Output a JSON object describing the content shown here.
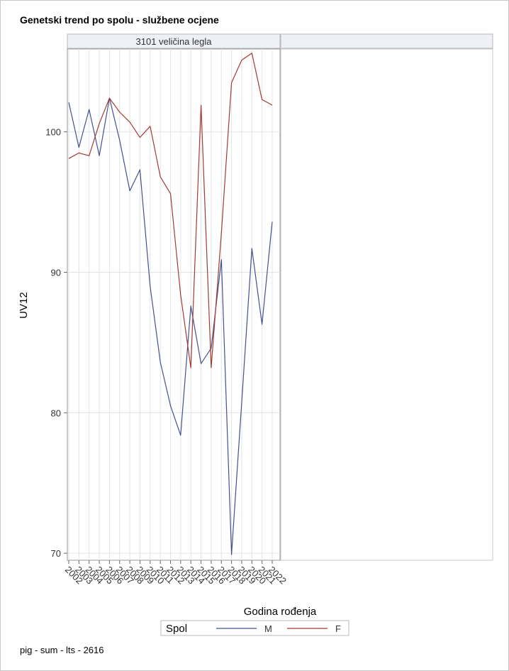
{
  "title": "Genetski trend po spolu - službene ocjene",
  "footer": "pig - sum - lts - 2616",
  "chart_data": {
    "type": "line",
    "panel_label": "3101 veličina legla",
    "xlabel": "Godina rođenja",
    "ylabel": "UV12",
    "ylim": [
      69.5,
      105.9
    ],
    "yticks": [
      70,
      80,
      90,
      100
    ],
    "x": [
      2002,
      2003,
      2004,
      2005,
      2006,
      2007,
      2008,
      2009,
      2010,
      2011,
      2012,
      2013,
      2014,
      2015,
      2016,
      2017,
      2018,
      2019,
      2020,
      2021,
      2022
    ],
    "legend_title": "Spol",
    "grid": true,
    "legend_position": "bottom",
    "series": [
      {
        "name": "M",
        "color": "#44508f",
        "values": [
          102.1,
          98.9,
          101.6,
          98.3,
          102.4,
          99.4,
          95.8,
          97.3,
          89.0,
          83.6,
          80.5,
          78.4,
          87.6,
          83.5,
          84.6,
          90.9,
          69.9,
          80.7,
          91.7,
          86.3,
          93.6
        ]
      },
      {
        "name": "F",
        "color": "#a33a32",
        "values": [
          98.1,
          98.5,
          98.3,
          100.6,
          102.4,
          101.4,
          100.7,
          99.6,
          100.4,
          96.8,
          95.6,
          88.4,
          83.2,
          101.9,
          83.2,
          92.8,
          103.5,
          105.1,
          105.6,
          102.3,
          101.9
        ]
      }
    ]
  }
}
